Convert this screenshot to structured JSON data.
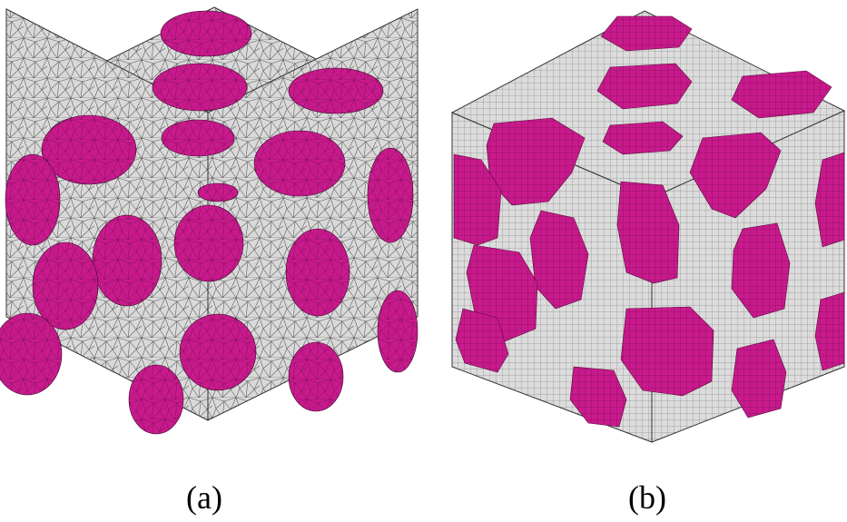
{
  "panels": [
    {
      "label": "(a)",
      "mesh": "tetrahedral"
    },
    {
      "label": "(b)",
      "mesh": "voxel"
    }
  ],
  "colors": {
    "matrix": "#d9d9d9",
    "inclusion": "#c81a8c",
    "mesh_lines": "#3a3a3a",
    "background": "#ffffff"
  }
}
